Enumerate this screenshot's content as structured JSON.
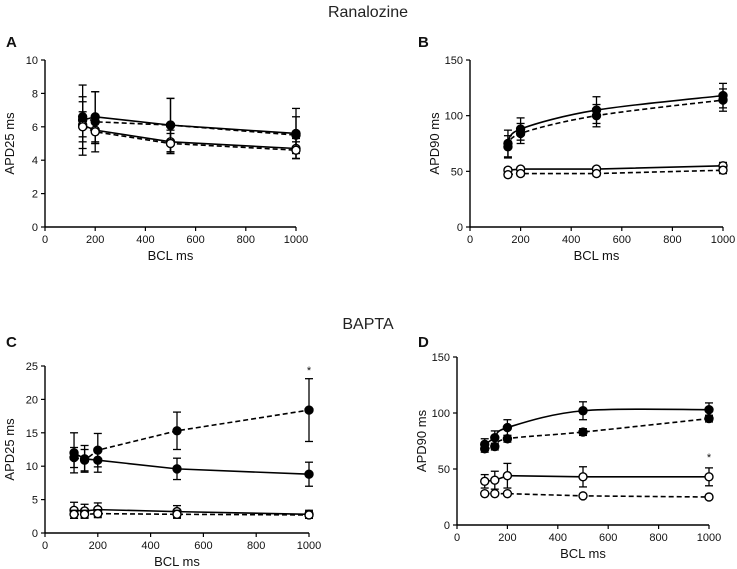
{
  "titles": {
    "top": "Ranalozine",
    "bottom": "BAPTA"
  },
  "chart_data": [
    {
      "panel": "A",
      "type": "line",
      "title": "Ranalozine",
      "xlabel": "BCL ms",
      "ylabel": "APD25 ms",
      "xlim": [
        0,
        1000
      ],
      "ylim": [
        0,
        10
      ],
      "xticks": [
        0,
        200,
        400,
        600,
        800,
        1000
      ],
      "yticks": [
        0,
        2,
        4,
        6,
        8,
        10
      ],
      "annotations": [],
      "series": [
        {
          "name": "filled solid",
          "marker": "filled",
          "line": "solid",
          "smooth": false,
          "x": [
            150,
            200,
            500,
            1000
          ],
          "y": [
            6.4,
            6.6,
            6.1,
            5.6
          ],
          "err": [
            2.1,
            1.5,
            1.6,
            1.5
          ]
        },
        {
          "name": "filled dashed",
          "marker": "filled",
          "line": "dashed",
          "smooth": false,
          "x": [
            150,
            200,
            500,
            1000
          ],
          "y": [
            6.6,
            6.3,
            6.1,
            5.5
          ],
          "err": [
            1.2,
            1.8,
            1.6,
            1.1
          ]
        },
        {
          "name": "open solid",
          "marker": "open",
          "line": "solid",
          "smooth": false,
          "x": [
            150,
            200,
            500,
            1000
          ],
          "y": [
            6.1,
            5.8,
            5.1,
            4.7
          ],
          "err": [
            1.4,
            0.8,
            0.7,
            0.6
          ]
        },
        {
          "name": "open dashed",
          "marker": "open",
          "line": "dashed",
          "smooth": false,
          "x": [
            150,
            200,
            500,
            1000
          ],
          "y": [
            6.0,
            5.7,
            5.0,
            4.6
          ],
          "err": [
            0.9,
            0.7,
            0.6,
            0.5
          ]
        }
      ]
    },
    {
      "panel": "B",
      "type": "line",
      "title": "Ranalozine",
      "xlabel": "BCL ms",
      "ylabel": "APD90 ms",
      "xlim": [
        0,
        1000
      ],
      "ylim": [
        0,
        150
      ],
      "xticks": [
        0,
        200,
        400,
        600,
        800,
        1000
      ],
      "yticks": [
        0,
        50,
        100,
        150
      ],
      "annotations": [],
      "series": [
        {
          "name": "filled solid",
          "marker": "filled",
          "line": "solid",
          "smooth": true,
          "x": [
            150,
            200,
            500,
            1000
          ],
          "y": [
            75,
            88,
            105,
            118
          ],
          "err": [
            12,
            10,
            12,
            11
          ]
        },
        {
          "name": "filled dashed",
          "marker": "filled",
          "line": "dashed",
          "smooth": true,
          "x": [
            150,
            200,
            500,
            1000
          ],
          "y": [
            72,
            84,
            100,
            114
          ],
          "err": [
            10,
            9,
            10,
            10
          ]
        },
        {
          "name": "open solid",
          "marker": "open",
          "line": "solid",
          "smooth": false,
          "x": [
            150,
            200,
            500,
            1000
          ],
          "y": [
            51,
            52,
            52,
            55
          ],
          "err": [
            2,
            2,
            2,
            3
          ]
        },
        {
          "name": "open dashed",
          "marker": "open",
          "line": "dashed",
          "smooth": false,
          "x": [
            150,
            200,
            500,
            1000
          ],
          "y": [
            47,
            48,
            48,
            51
          ],
          "err": [
            2,
            2,
            2,
            3
          ]
        }
      ]
    },
    {
      "panel": "C",
      "type": "line",
      "title": "BAPTA",
      "xlabel": "BCL ms",
      "ylabel": "APD25 ms",
      "xlim": [
        0,
        1000
      ],
      "ylim": [
        0,
        25
      ],
      "xticks": [
        0,
        200,
        400,
        600,
        800,
        1000
      ],
      "yticks": [
        0,
        5,
        10,
        15,
        20,
        25
      ],
      "annotations": [
        {
          "text": "*",
          "x": 1000,
          "y": 23.8
        }
      ],
      "series": [
        {
          "name": "filled solid",
          "marker": "filled",
          "line": "solid",
          "smooth": false,
          "x": [
            110,
            150,
            200,
            500,
            1000
          ],
          "y": [
            12.0,
            11.1,
            10.9,
            9.6,
            8.8
          ],
          "err": [
            3.0,
            2.0,
            1.8,
            1.6,
            1.8
          ]
        },
        {
          "name": "filled dashed",
          "marker": "filled",
          "line": "dashed",
          "smooth": false,
          "x": [
            110,
            150,
            200,
            500,
            1000
          ],
          "y": [
            11.3,
            10.9,
            12.4,
            15.3,
            18.4
          ],
          "err": [
            1.5,
            1.6,
            2.5,
            2.8,
            4.7
          ]
        },
        {
          "name": "open solid",
          "marker": "open",
          "line": "solid",
          "smooth": false,
          "x": [
            110,
            150,
            200,
            500,
            1000
          ],
          "y": [
            3.4,
            3.3,
            3.5,
            3.2,
            2.8
          ],
          "err": [
            1.2,
            1.0,
            1.0,
            0.9,
            0.6
          ]
        },
        {
          "name": "open dashed",
          "marker": "open",
          "line": "dashed",
          "smooth": false,
          "x": [
            110,
            150,
            200,
            500,
            1000
          ],
          "y": [
            2.8,
            2.8,
            2.9,
            2.8,
            2.7
          ],
          "err": [
            0.6,
            0.6,
            0.6,
            0.6,
            0.5
          ]
        }
      ]
    },
    {
      "panel": "D",
      "type": "line",
      "title": "BAPTA",
      "xlabel": "BCL ms",
      "ylabel": "APD90 ms",
      "xlim": [
        0,
        1000
      ],
      "ylim": [
        0,
        150
      ],
      "xticks": [
        0,
        200,
        400,
        600,
        800,
        1000
      ],
      "yticks": [
        0,
        50,
        100,
        150
      ],
      "annotations": [
        {
          "text": "*",
          "x": 1000,
          "y": 57
        }
      ],
      "series": [
        {
          "name": "filled solid",
          "marker": "filled",
          "line": "solid",
          "smooth": true,
          "x": [
            110,
            150,
            200,
            500,
            1000
          ],
          "y": [
            72,
            78,
            87,
            102,
            103
          ],
          "err": [
            5,
            6,
            7,
            8,
            6
          ]
        },
        {
          "name": "filled dashed",
          "marker": "filled",
          "line": "dashed",
          "smooth": true,
          "x": [
            110,
            150,
            200,
            500,
            1000
          ],
          "y": [
            68,
            70,
            77,
            83,
            95
          ],
          "err": [
            3,
            3,
            3,
            3,
            3
          ]
        },
        {
          "name": "open solid",
          "marker": "open",
          "line": "solid",
          "smooth": false,
          "x": [
            110,
            150,
            200,
            500,
            1000
          ],
          "y": [
            39,
            40,
            44,
            43,
            43
          ],
          "err": [
            6,
            8,
            11,
            9,
            8
          ]
        },
        {
          "name": "open dashed",
          "marker": "open",
          "line": "dashed",
          "smooth": false,
          "x": [
            110,
            150,
            200,
            500,
            1000
          ],
          "y": [
            28,
            28,
            28,
            26,
            25
          ],
          "err": [
            1,
            1,
            1,
            1,
            1
          ]
        }
      ]
    }
  ]
}
